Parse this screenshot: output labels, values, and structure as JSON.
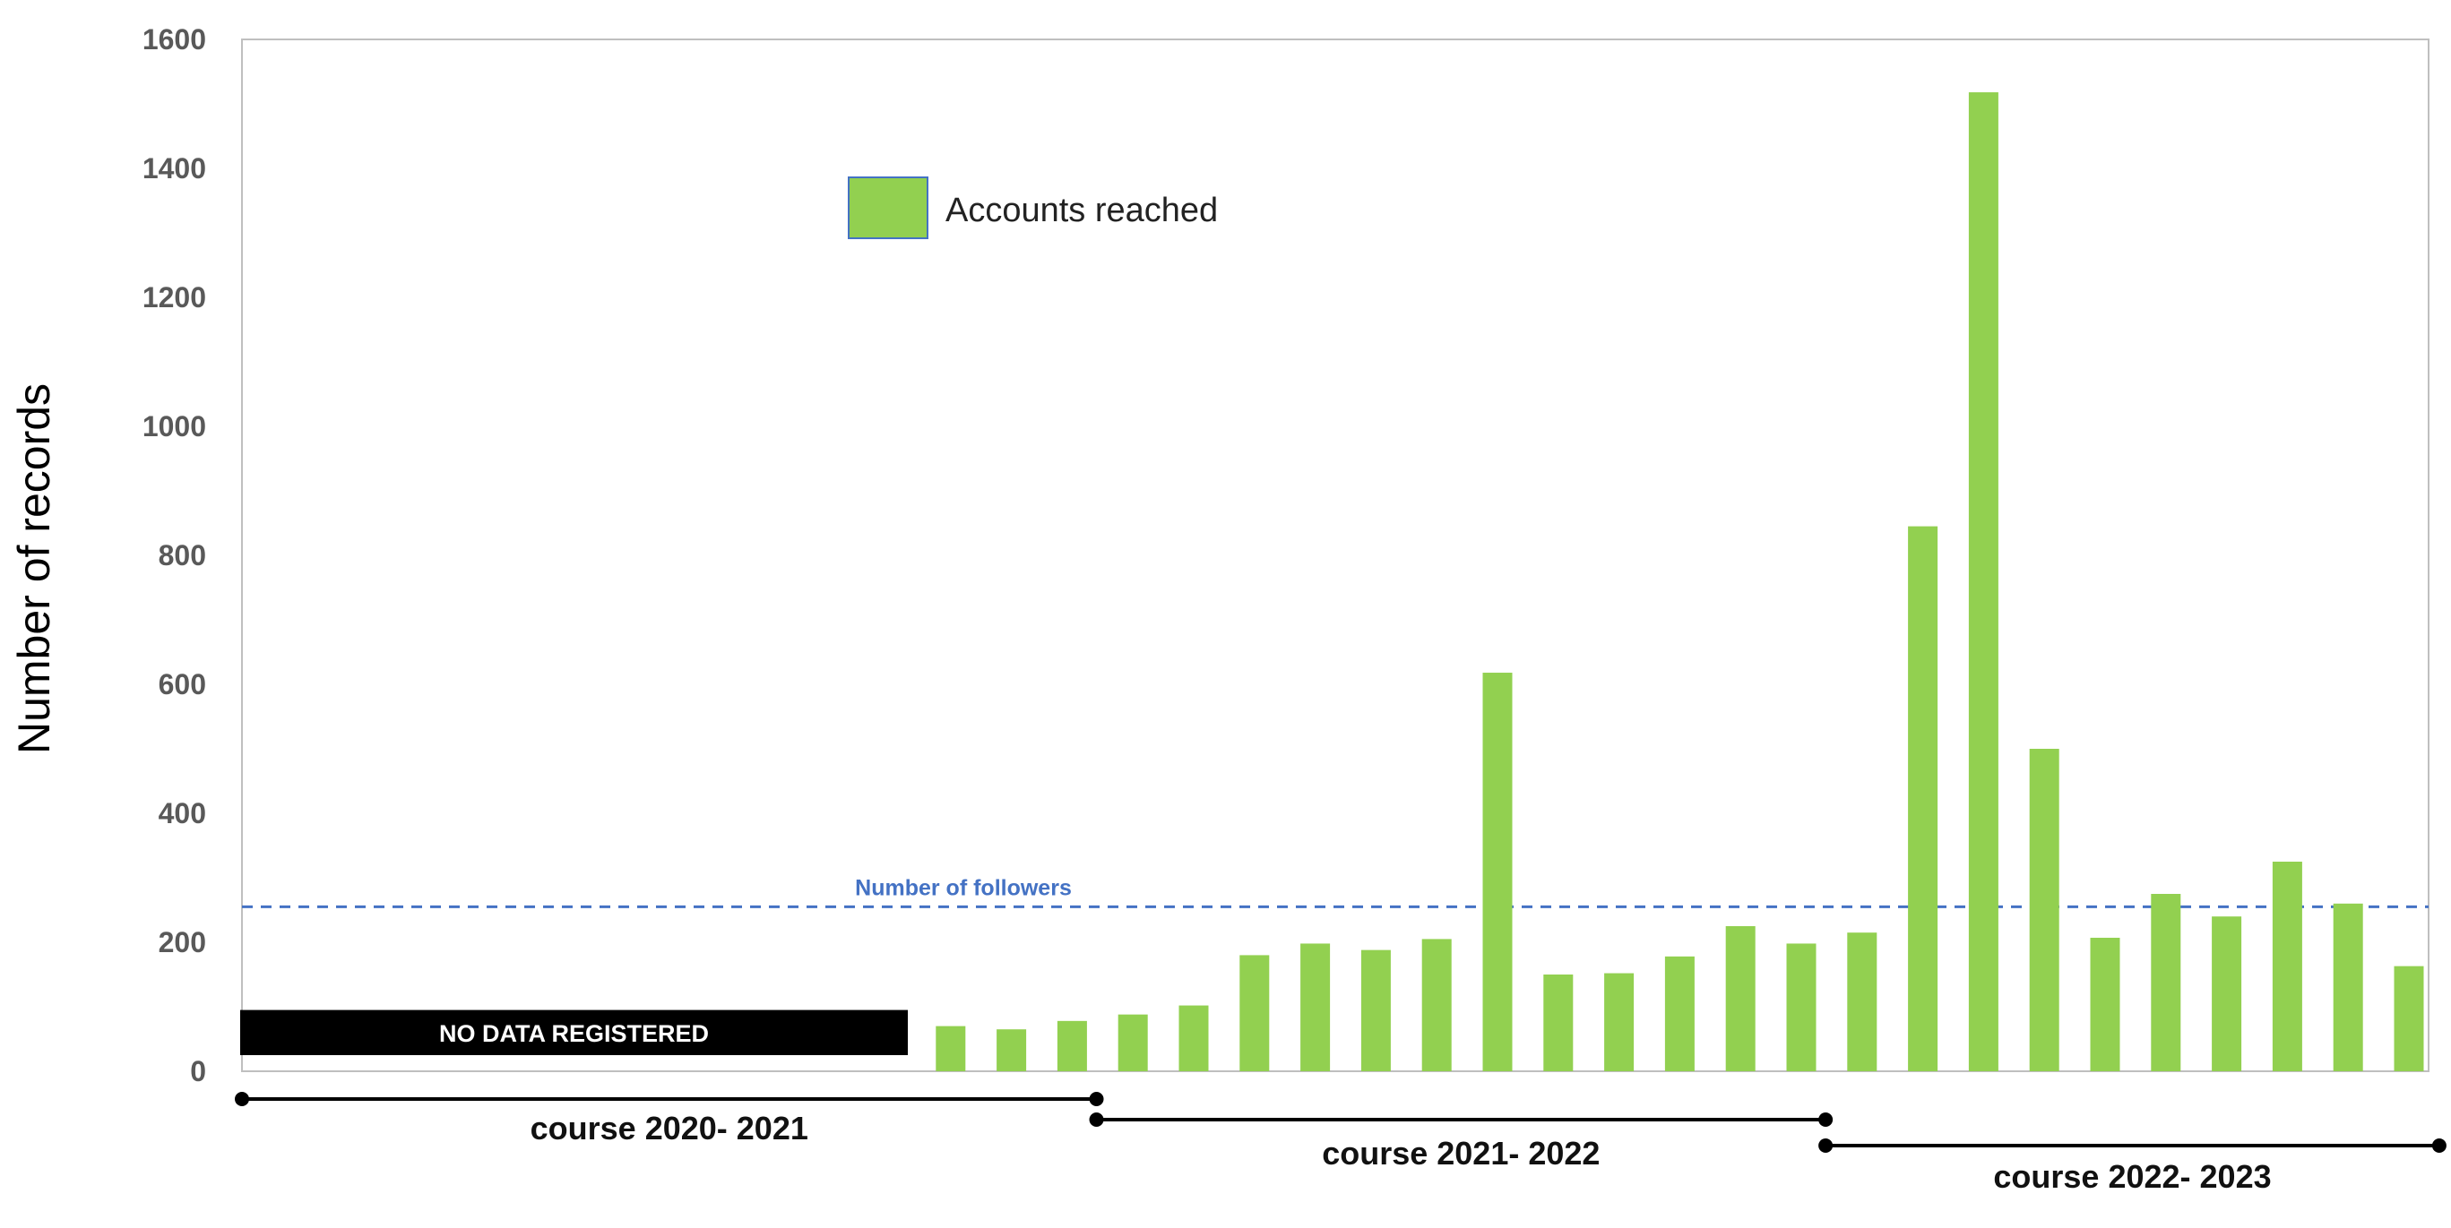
{
  "chart_data": {
    "type": "bar",
    "ylabel": "Number of records",
    "xlabel": "",
    "ylim": [
      0,
      1600
    ],
    "y_ticks": [
      0,
      200,
      400,
      600,
      800,
      1000,
      1200,
      1400,
      1600
    ],
    "x_tick_labels": "none",
    "grid": false,
    "legend": {
      "placement": "top-center",
      "entries": [
        "Accounts reached"
      ]
    },
    "series": [
      {
        "name": "Accounts reached",
        "color": "#92d050",
        "values": [
          null,
          null,
          null,
          null,
          null,
          null,
          null,
          null,
          null,
          null,
          null,
          70,
          65,
          78,
          88,
          102,
          180,
          198,
          188,
          205,
          618,
          150,
          152,
          178,
          225,
          198,
          215,
          845,
          1518,
          500,
          207,
          275,
          240,
          325,
          260,
          163
        ]
      }
    ],
    "reference_line": {
      "label": "Number of followers",
      "value": 255,
      "color": "#4472c4",
      "style": "dashed"
    },
    "no_data_box": {
      "label": "NO DATA REGISTERED",
      "from_index": 0,
      "to_index": 10,
      "value": 95
    },
    "periods": [
      {
        "label": "course 2020- 2021",
        "from_index": 0,
        "to_index": 13.4
      },
      {
        "label": "course 2021- 2022",
        "from_index": 13.4,
        "to_index": 25.4
      },
      {
        "label": "course 2022- 2023",
        "from_index": 25.4,
        "to_index": 35.5
      }
    ]
  }
}
